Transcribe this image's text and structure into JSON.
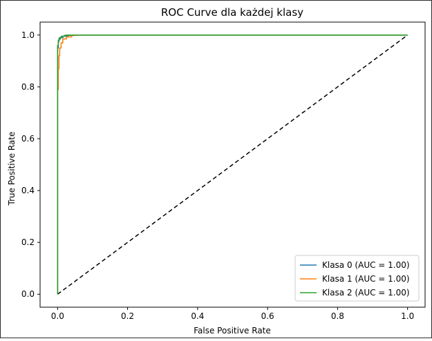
{
  "chart_data": {
    "type": "line",
    "title": "ROC Curve dla każdej klasy",
    "xlabel": "False Positive Rate",
    "ylabel": "True Positive Rate",
    "xlim": [
      -0.05,
      1.05
    ],
    "ylim": [
      -0.05,
      1.05
    ],
    "x_ticks": [
      "0.0",
      "0.2",
      "0.4",
      "0.6",
      "0.8",
      "1.0"
    ],
    "y_ticks": [
      "0.0",
      "0.2",
      "0.4",
      "0.6",
      "0.8",
      "1.0"
    ],
    "grid": false,
    "legend_position": "lower-right",
    "series": [
      {
        "name": "Klasa 0 (AUC = 1.00)",
        "color": "#1f77b4",
        "x": [
          0.0,
          0.0,
          0.002,
          0.002,
          0.004,
          0.004,
          0.008,
          0.008,
          0.015,
          0.015,
          0.03,
          0.03,
          0.05,
          1.0
        ],
        "y": [
          0.0,
          0.95,
          0.95,
          0.975,
          0.975,
          0.985,
          0.985,
          0.99,
          0.99,
          0.996,
          0.996,
          0.999,
          1.0,
          1.0
        ]
      },
      {
        "name": "Klasa 1 (AUC = 1.00)",
        "color": "#ff7f0e",
        "x": [
          0.0,
          0.0,
          0.002,
          0.002,
          0.004,
          0.004,
          0.006,
          0.006,
          0.01,
          0.01,
          0.015,
          0.015,
          0.025,
          0.025,
          0.04,
          0.04,
          0.06,
          1.0
        ],
        "y": [
          0.0,
          0.79,
          0.79,
          0.87,
          0.87,
          0.92,
          0.92,
          0.95,
          0.95,
          0.97,
          0.97,
          0.985,
          0.985,
          0.993,
          0.993,
          0.998,
          1.0,
          1.0
        ]
      },
      {
        "name": "Klasa 2 (AUC = 1.00)",
        "color": "#2ca02c",
        "x": [
          0.0,
          0.0,
          0.002,
          0.002,
          0.005,
          0.005,
          0.01,
          0.01,
          0.02,
          0.02,
          0.03,
          1.0
        ],
        "y": [
          0.0,
          0.96,
          0.96,
          0.98,
          0.98,
          0.99,
          0.99,
          0.995,
          0.995,
          0.999,
          1.0,
          1.0
        ]
      }
    ],
    "reference_line": {
      "color": "#000000",
      "x": [
        0.0,
        1.0
      ],
      "y": [
        0.0,
        1.0
      ]
    }
  }
}
